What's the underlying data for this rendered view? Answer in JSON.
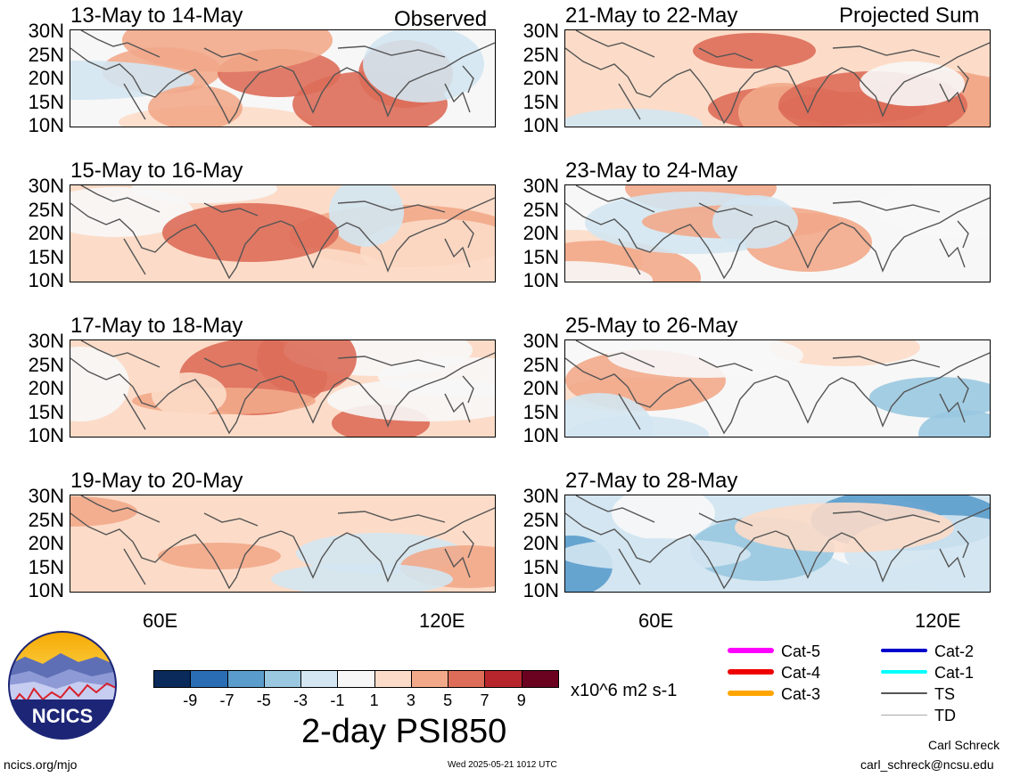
{
  "panels": [
    {
      "title": "13-May to 14-May",
      "tag": "Observed",
      "seed": 1,
      "bias": 1.5
    },
    {
      "title": "15-May to 16-May",
      "tag": "",
      "seed": 2,
      "bias": 2.5
    },
    {
      "title": "17-May to 18-May",
      "tag": "",
      "seed": 3,
      "bias": 2.0
    },
    {
      "title": "19-May to 20-May",
      "tag": "",
      "seed": 4,
      "bias": 2.8
    },
    {
      "title": "21-May to 22-May",
      "tag": "Projected Sum",
      "seed": 5,
      "bias": 2.6
    },
    {
      "title": "23-May to 24-May",
      "tag": "",
      "seed": 6,
      "bias": 1.4
    },
    {
      "title": "25-May to 26-May",
      "tag": "",
      "seed": 7,
      "bias": -0.4
    },
    {
      "title": "27-May to 28-May",
      "tag": "",
      "seed": 8,
      "bias": -1.8
    }
  ],
  "lat_labels": [
    "30N",
    "25N",
    "20N",
    "15N",
    "10N"
  ],
  "lon_labels": [
    "60E",
    "120E"
  ],
  "colorbar": {
    "colors": [
      "#0a2a5c",
      "#2a6db5",
      "#5a9ccc",
      "#99c8e0",
      "#d3e6f1",
      "#f7f7f7",
      "#fcdcc8",
      "#f2a98a",
      "#dd6d59",
      "#b8262d",
      "#6a0220"
    ],
    "labels": [
      "-9",
      "-7",
      "-5",
      "-3",
      "-1",
      "1",
      "3",
      "5",
      "7",
      "9"
    ],
    "units": "x10^6 m2 s-1",
    "title": "2-day PSI850"
  },
  "legend": [
    {
      "label": "Cat-5",
      "color": "#ff00ff",
      "width": 6
    },
    {
      "label": "Cat-4",
      "color": "#ee0000",
      "width": 6
    },
    {
      "label": "Cat-3",
      "color": "#ffa500",
      "width": 6
    },
    {
      "label": "Cat-2",
      "color": "#0000cc",
      "width": 4
    },
    {
      "label": "Cat-1",
      "color": "#00ffff",
      "width": 4
    },
    {
      "label": "TS",
      "color": "#555555",
      "width": 2
    },
    {
      "label": "TD",
      "color": "#aaaaaa",
      "width": 1
    }
  ],
  "logo": {
    "text": "NCICS"
  },
  "footer": {
    "left": "ncics.org/mjo",
    "center": "Wed 2025-05-21 1012 UTC",
    "author": "Carl Schreck",
    "email": "carl_schreck@ncsu.edu"
  }
}
